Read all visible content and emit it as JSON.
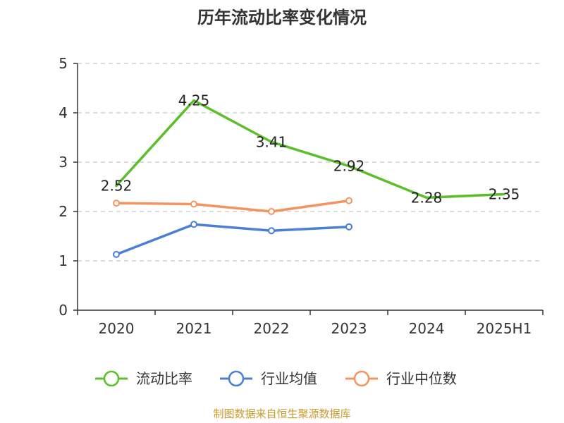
{
  "chart_data": {
    "type": "line",
    "title": "历年流动比率变化情况",
    "categories": [
      "2020",
      "2021",
      "2022",
      "2023",
      "2024",
      "2025H1"
    ],
    "ylim": [
      0,
      5
    ],
    "yticks": [
      0,
      1,
      2,
      3,
      4,
      5
    ],
    "grid": true,
    "legend_position": "bottom",
    "series": [
      {
        "name": "流动比率",
        "color": "#5cbe2a",
        "values": [
          2.52,
          4.25,
          3.41,
          2.92,
          2.28,
          2.35
        ],
        "labels": [
          "2.52",
          "4.25",
          "3.41",
          "2.92",
          "2.28",
          "2.35"
        ],
        "show_labels": true,
        "marker": "none"
      },
      {
        "name": "行业均值",
        "color": "#4a7fd4",
        "values": [
          1.13,
          1.74,
          1.61,
          1.69,
          null,
          null
        ],
        "show_labels": false,
        "marker": "circle"
      },
      {
        "name": "行业中位数",
        "color": "#f5935f",
        "values": [
          2.17,
          2.15,
          2.0,
          2.22,
          null,
          null
        ],
        "show_labels": false,
        "marker": "circle"
      }
    ]
  },
  "source_text": "制图数据来自恒生聚源数据库"
}
